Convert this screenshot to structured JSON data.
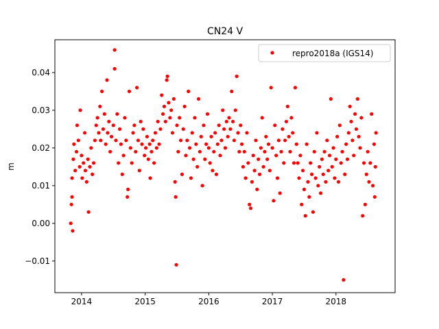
{
  "chart_data": {
    "type": "scatter",
    "title": "CN24 V",
    "xlabel": "",
    "ylabel": "m",
    "xlim": [
      2013.58,
      2018.93
    ],
    "ylim": [
      -0.0184,
      0.0487
    ],
    "xticks": [
      2014,
      2015,
      2016,
      2017,
      2018
    ],
    "xtick_labels": [
      "2014",
      "2015",
      "2016",
      "2017",
      "2018"
    ],
    "yticks": [
      -0.01,
      0.0,
      0.01,
      0.02,
      0.03,
      0.04
    ],
    "ytick_labels": [
      "−0.01",
      "0.00",
      "0.01",
      "0.02",
      "0.03",
      "0.04"
    ],
    "grid": false,
    "legend": {
      "position": "top-right",
      "entries": [
        "repro2018a (IGS14)"
      ]
    },
    "series": [
      {
        "name": "repro2018a (IGS14)",
        "color": "#ff0000",
        "marker": "circle",
        "points": [
          [
            2013.83,
            0.0
          ],
          [
            2013.84,
            0.005
          ],
          [
            2013.85,
            0.007
          ],
          [
            2013.86,
            -0.002
          ],
          [
            2013.85,
            0.012
          ],
          [
            2013.87,
            0.017
          ],
          [
            2013.88,
            0.021
          ],
          [
            2013.9,
            0.014
          ],
          [
            2013.92,
            0.019
          ],
          [
            2013.93,
            0.026
          ],
          [
            2013.95,
            0.022
          ],
          [
            2013.97,
            0.015
          ],
          [
            2013.98,
            0.03
          ],
          [
            2014.0,
            0.018
          ],
          [
            2014.01,
            0.012
          ],
          [
            2014.03,
            0.016
          ],
          [
            2014.05,
            0.024
          ],
          [
            2014.06,
            0.014
          ],
          [
            2014.08,
            0.011
          ],
          [
            2014.1,
            0.017
          ],
          [
            2014.11,
            0.003
          ],
          [
            2014.13,
            0.015
          ],
          [
            2014.15,
            0.02
          ],
          [
            2014.17,
            0.013
          ],
          [
            2014.19,
            0.016
          ],
          [
            2014.21,
            0.022
          ],
          [
            2014.23,
            0.026
          ],
          [
            2014.25,
            0.028
          ],
          [
            2014.27,
            0.024
          ],
          [
            2014.29,
            0.031
          ],
          [
            2014.3,
            0.022
          ],
          [
            2014.32,
            0.035
          ],
          [
            2014.34,
            0.025
          ],
          [
            2014.36,
            0.029
          ],
          [
            2014.38,
            0.021
          ],
          [
            2014.4,
            0.038
          ],
          [
            2014.41,
            0.024
          ],
          [
            2014.43,
            0.027
          ],
          [
            2014.45,
            0.019
          ],
          [
            2014.47,
            0.023
          ],
          [
            2014.5,
            0.026
          ],
          [
            2014.52,
            0.046
          ],
          [
            2014.52,
            0.041
          ],
          [
            2014.54,
            0.022
          ],
          [
            2014.56,
            0.029
          ],
          [
            2014.58,
            0.016
          ],
          [
            2014.6,
            0.025
          ],
          [
            2014.62,
            0.021
          ],
          [
            2014.64,
            0.013
          ],
          [
            2014.66,
            0.018
          ],
          [
            2014.68,
            0.028
          ],
          [
            2014.7,
            0.022
          ],
          [
            2014.72,
            0.007
          ],
          [
            2014.73,
            0.009
          ],
          [
            2014.75,
            0.035
          ],
          [
            2014.77,
            0.02
          ],
          [
            2014.79,
            0.016
          ],
          [
            2014.81,
            0.024
          ],
          [
            2014.83,
            0.026
          ],
          [
            2014.85,
            0.019
          ],
          [
            2014.87,
            0.036
          ],
          [
            2014.89,
            0.022
          ],
          [
            2014.91,
            0.014
          ],
          [
            2014.93,
            0.027
          ],
          [
            2014.95,
            0.021
          ],
          [
            2014.97,
            0.025
          ],
          [
            2014.99,
            0.018
          ],
          [
            2015.01,
            0.02
          ],
          [
            2015.03,
            0.023
          ],
          [
            2015.05,
            0.017
          ],
          [
            2015.07,
            0.021
          ],
          [
            2015.08,
            0.012
          ],
          [
            2015.1,
            0.019
          ],
          [
            2015.12,
            0.022
          ],
          [
            2015.14,
            0.016
          ],
          [
            2015.16,
            0.024
          ],
          [
            2015.18,
            0.02
          ],
          [
            2015.2,
            0.027
          ],
          [
            2015.22,
            0.021
          ],
          [
            2015.24,
            0.025
          ],
          [
            2015.26,
            0.034
          ],
          [
            2015.28,
            0.029
          ],
          [
            2015.3,
            0.031
          ],
          [
            2015.32,
            0.027
          ],
          [
            2015.34,
            0.038
          ],
          [
            2015.35,
            0.039
          ],
          [
            2015.37,
            0.032
          ],
          [
            2015.39,
            0.028
          ],
          [
            2015.41,
            0.03
          ],
          [
            2015.43,
            0.024
          ],
          [
            2015.45,
            0.033
          ],
          [
            2015.47,
            0.011
          ],
          [
            2015.48,
            0.007
          ],
          [
            2015.49,
            -0.011
          ],
          [
            2015.5,
            0.026
          ],
          [
            2015.52,
            0.019
          ],
          [
            2015.54,
            0.028
          ],
          [
            2015.56,
            0.022
          ],
          [
            2015.58,
            0.013
          ],
          [
            2015.6,
            0.025
          ],
          [
            2015.62,
            0.031
          ],
          [
            2015.64,
            0.018
          ],
          [
            2015.66,
            0.022
          ],
          [
            2015.68,
            0.035
          ],
          [
            2015.7,
            0.02
          ],
          [
            2015.72,
            0.012
          ],
          [
            2015.74,
            0.024
          ],
          [
            2015.76,
            0.017
          ],
          [
            2015.78,
            0.028
          ],
          [
            2015.8,
            0.021
          ],
          [
            2015.82,
            0.015
          ],
          [
            2015.84,
            0.033
          ],
          [
            2015.86,
            0.019
          ],
          [
            2015.88,
            0.023
          ],
          [
            2015.9,
            0.01
          ],
          [
            2015.92,
            0.026
          ],
          [
            2015.94,
            0.017
          ],
          [
            2015.96,
            0.021
          ],
          [
            2015.98,
            0.029
          ],
          [
            2016.0,
            0.02
          ],
          [
            2016.02,
            0.016
          ],
          [
            2016.04,
            0.023
          ],
          [
            2016.06,
            0.014
          ],
          [
            2016.08,
            0.019
          ],
          [
            2016.1,
            0.024
          ],
          [
            2016.12,
            0.013
          ],
          [
            2016.14,
            0.021
          ],
          [
            2016.16,
            0.026
          ],
          [
            2016.18,
            0.018
          ],
          [
            2016.2,
            0.022
          ],
          [
            2016.22,
            0.03
          ],
          [
            2016.24,
            0.025
          ],
          [
            2016.26,
            0.02
          ],
          [
            2016.28,
            0.027
          ],
          [
            2016.3,
            0.023
          ],
          [
            2016.32,
            0.028
          ],
          [
            2016.34,
            0.025
          ],
          [
            2016.36,
            0.035
          ],
          [
            2016.38,
            0.027
          ],
          [
            2016.4,
            0.022
          ],
          [
            2016.42,
            0.03
          ],
          [
            2016.44,
            0.039
          ],
          [
            2016.46,
            0.024
          ],
          [
            2016.48,
            0.019
          ],
          [
            2016.5,
            0.026
          ],
          [
            2016.52,
            0.021
          ],
          [
            2016.54,
            0.015
          ],
          [
            2016.56,
            0.019
          ],
          [
            2016.58,
            0.012
          ],
          [
            2016.6,
            0.024
          ],
          [
            2016.62,
            0.016
          ],
          [
            2016.64,
            0.005
          ],
          [
            2016.66,
            0.004
          ],
          [
            2016.68,
            0.011
          ],
          [
            2016.7,
            0.018
          ],
          [
            2016.72,
            0.014
          ],
          [
            2016.74,
            0.022
          ],
          [
            2016.76,
            0.009
          ],
          [
            2016.78,
            0.017
          ],
          [
            2016.8,
            0.013
          ],
          [
            2016.82,
            0.02
          ],
          [
            2016.84,
            0.028
          ],
          [
            2016.86,
            0.015
          ],
          [
            2016.88,
            0.019
          ],
          [
            2016.9,
            0.023
          ],
          [
            2016.92,
            0.017
          ],
          [
            2016.94,
            0.021
          ],
          [
            2016.96,
            0.014
          ],
          [
            2016.98,
            0.036
          ],
          [
            2017.0,
            0.02
          ],
          [
            2017.02,
            0.006
          ],
          [
            2017.04,
            0.026
          ],
          [
            2017.06,
            0.018
          ],
          [
            2017.08,
            0.012
          ],
          [
            2017.1,
            0.022
          ],
          [
            2017.12,
            0.008
          ],
          [
            2017.14,
            0.019
          ],
          [
            2017.16,
            0.025
          ],
          [
            2017.18,
            0.016
          ],
          [
            2017.2,
            0.022
          ],
          [
            2017.22,
            0.027
          ],
          [
            2017.24,
            0.031
          ],
          [
            2017.26,
            0.023
          ],
          [
            2017.28,
            0.019
          ],
          [
            2017.3,
            0.028
          ],
          [
            2017.32,
            0.024
          ],
          [
            2017.34,
            0.016
          ],
          [
            2017.36,
            0.036
          ],
          [
            2017.38,
            0.021
          ],
          [
            2017.4,
            0.016
          ],
          [
            2017.42,
            0.012
          ],
          [
            2017.44,
            0.018
          ],
          [
            2017.46,
            0.005
          ],
          [
            2017.48,
            0.014
          ],
          [
            2017.5,
            0.009
          ],
          [
            2017.52,
            0.002
          ],
          [
            2017.54,
            0.021
          ],
          [
            2017.56,
            0.011
          ],
          [
            2017.58,
            0.007
          ],
          [
            2017.6,
            0.016
          ],
          [
            2017.62,
            0.013
          ],
          [
            2017.64,
            0.003
          ],
          [
            2017.66,
            0.019
          ],
          [
            2017.68,
            0.012
          ],
          [
            2017.7,
            0.024
          ],
          [
            2017.72,
            0.01
          ],
          [
            2017.74,
            0.015
          ],
          [
            2017.76,
            0.008
          ],
          [
            2017.78,
            0.017
          ],
          [
            2017.8,
            0.013
          ],
          [
            2017.82,
            0.019
          ],
          [
            2017.84,
            0.011
          ],
          [
            2017.86,
            0.022
          ],
          [
            2017.88,
            0.014
          ],
          [
            2017.9,
            0.018
          ],
          [
            2017.92,
            0.033
          ],
          [
            2017.94,
            0.015
          ],
          [
            2017.96,
            0.02
          ],
          [
            2017.98,
            0.012
          ],
          [
            2018.0,
            0.017
          ],
          [
            2018.02,
            0.023
          ],
          [
            2018.04,
            0.011
          ],
          [
            2018.06,
            0.026
          ],
          [
            2018.08,
            0.016
          ],
          [
            2018.1,
            0.019
          ],
          [
            2018.12,
            -0.015
          ],
          [
            2018.14,
            0.013
          ],
          [
            2018.16,
            0.021
          ],
          [
            2018.18,
            0.017
          ],
          [
            2018.2,
            0.024
          ],
          [
            2018.22,
            0.031
          ],
          [
            2018.24,
            0.027
          ],
          [
            2018.26,
            0.022
          ],
          [
            2018.28,
            0.018
          ],
          [
            2018.3,
            0.029
          ],
          [
            2018.32,
            0.025
          ],
          [
            2018.34,
            0.033
          ],
          [
            2018.36,
            0.023
          ],
          [
            2018.38,
            0.02
          ],
          [
            2018.4,
            0.028
          ],
          [
            2018.42,
            0.002
          ],
          [
            2018.44,
            0.016
          ],
          [
            2018.46,
            0.005
          ],
          [
            2018.48,
            0.013
          ],
          [
            2018.5,
            0.019
          ],
          [
            2018.52,
            0.011
          ],
          [
            2018.54,
            0.016
          ],
          [
            2018.56,
            0.029
          ],
          [
            2018.58,
            0.01
          ],
          [
            2018.6,
            0.021
          ],
          [
            2018.61,
            0.007
          ],
          [
            2018.62,
            0.015
          ],
          [
            2018.63,
            0.024
          ]
        ]
      }
    ]
  }
}
